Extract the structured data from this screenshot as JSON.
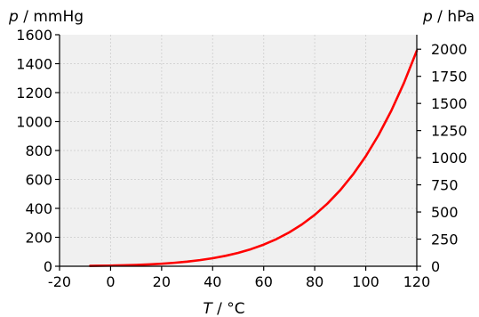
{
  "chart_data": {
    "type": "line",
    "x_axis": {
      "label_var": "T",
      "label_unit": " / °C",
      "ticks": [
        -20,
        0,
        20,
        40,
        60,
        80,
        100,
        120
      ],
      "range": [
        -20,
        120
      ]
    },
    "y_axis_left": {
      "label_var": "p",
      "label_unit": " / mmHg",
      "ticks": [
        0,
        200,
        400,
        600,
        800,
        1000,
        1200,
        1400,
        1600
      ],
      "range": [
        0,
        1600
      ]
    },
    "y_axis_right": {
      "label_var": "p",
      "label_unit": " / hPa",
      "ticks": [
        0,
        250,
        500,
        750,
        1000,
        1250,
        1500,
        1750,
        2000
      ],
      "conversion_hPa_per_mmHg": 1.33322
    },
    "grid": true,
    "plot_background": "#f0f0f0",
    "line_color": "#ff0000",
    "series": [
      {
        "x": [
          -8,
          -5,
          0,
          5,
          10,
          15,
          20,
          25,
          30,
          35,
          40,
          45,
          50,
          55,
          60,
          65,
          70,
          75,
          80,
          85,
          90,
          95,
          100,
          105,
          110,
          115,
          120
        ],
        "y": [
          2.4,
          3.2,
          4.6,
          6.5,
          9.2,
          12.8,
          17.5,
          23.8,
          31.8,
          42.2,
          55.3,
          71.9,
          92.5,
          118.0,
          149.4,
          187.5,
          233.7,
          289.1,
          355.1,
          433.6,
          525.8,
          633.9,
          760.0,
          906.1,
          1074.6,
          1268.0,
          1489.1
        ]
      }
    ]
  }
}
